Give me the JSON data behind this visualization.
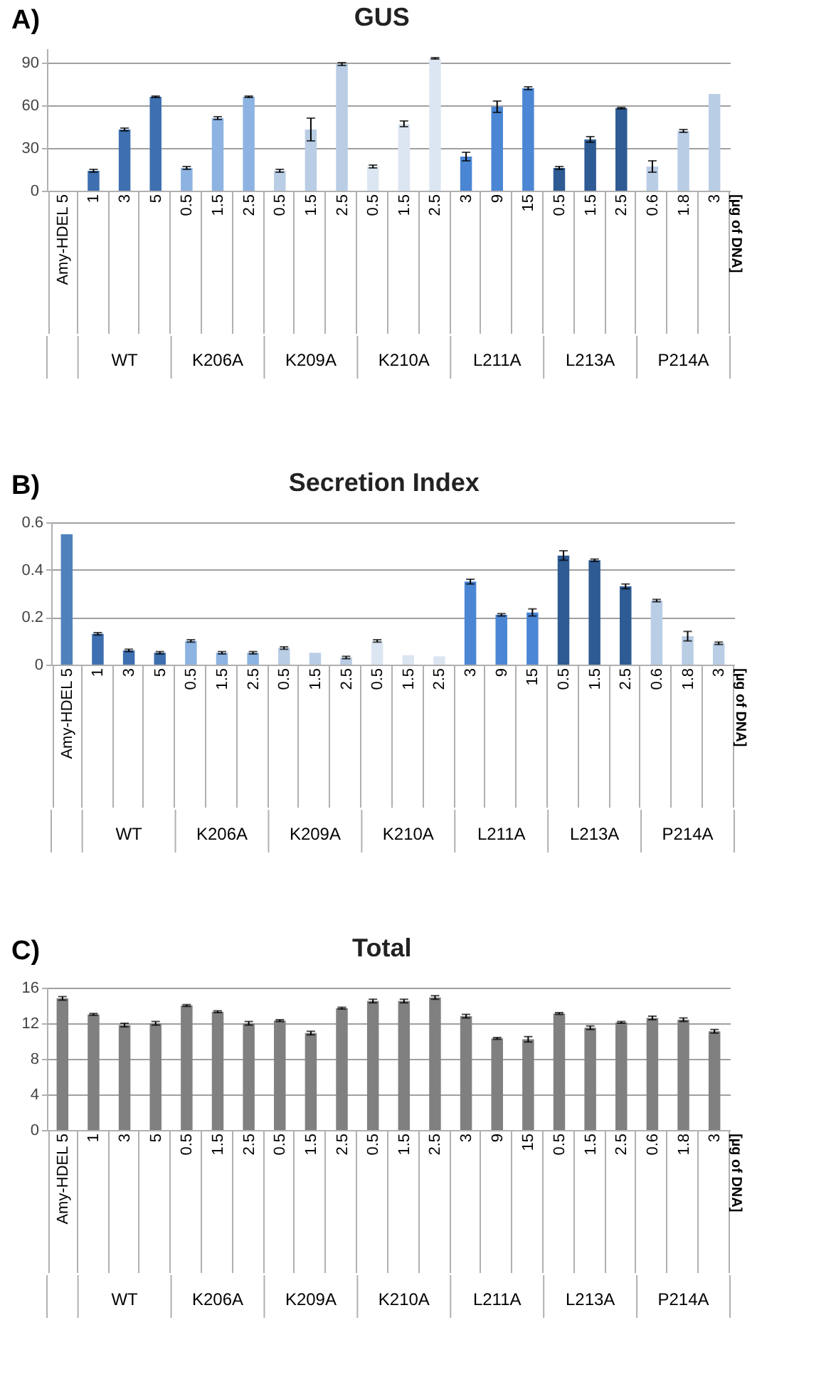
{
  "chart_data": [
    {
      "type": "bar",
      "title": "GUS",
      "annotations": [
        "A)",
        "WT",
        "K206A",
        "K209A",
        "K210A",
        "L211A",
        "L213A",
        "P214A",
        "[µg of DNA]"
      ],
      "categories": [
        "Amy-HDEL 5",
        "1",
        "3",
        "5",
        "0.5",
        "1.5",
        "2.5",
        "0.5",
        "1.5",
        "2.5",
        "0.5",
        "1.5",
        "2.5",
        "3",
        "9",
        "15",
        "0.5",
        "1.5",
        "2.5",
        "0.6",
        "1.8",
        "3"
      ],
      "values": [
        0,
        14,
        43,
        66,
        16,
        51,
        66,
        14,
        43,
        89,
        17,
        47,
        93,
        24,
        59,
        72,
        16,
        36,
        58,
        17,
        42,
        68
      ],
      "errors": [
        null,
        1,
        1,
        0.5,
        1,
        1,
        0.5,
        1,
        8,
        1,
        1,
        2,
        0.5,
        3,
        4,
        1,
        1,
        2,
        0.5,
        4,
        1,
        null
      ],
      "colors": [
        "#4f81bd",
        "#3e6fb0",
        "#3e6fb0",
        "#3e6fb0",
        "#8db3e2",
        "#8db3e2",
        "#8db3e2",
        "#b9cde5",
        "#b9cde5",
        "#b9cde5",
        "#dce6f2",
        "#dce6f2",
        "#dce6f2",
        "#4a86d4",
        "#4a86d4",
        "#4a86d4",
        "#2e5b93",
        "#2e5b93",
        "#2e5b93",
        "#b9cde5",
        "#b9cde5",
        "#b9cde5"
      ],
      "ylim": [
        0,
        100
      ],
      "yticks": [
        0,
        30,
        60,
        90
      ],
      "grid": "y"
    },
    {
      "type": "bar",
      "title": "Secretion Index",
      "annotations": [
        "B)",
        "WT",
        "K206A",
        "K209A",
        "K210A",
        "L211A",
        "L213A",
        "P214A",
        "[µg of DNA]"
      ],
      "categories": [
        "Amy-HDEL 5",
        "1",
        "3",
        "5",
        "0.5",
        "1.5",
        "2.5",
        "0.5",
        "1.5",
        "2.5",
        "0.5",
        "1.5",
        "2.5",
        "3",
        "9",
        "15",
        "0.5",
        "1.5",
        "2.5",
        "0.6",
        "1.8",
        "3"
      ],
      "values": [
        0.55,
        0.13,
        0.06,
        0.05,
        0.1,
        0.05,
        0.05,
        0.07,
        0.05,
        0.03,
        0.1,
        0.04,
        0.035,
        0.35,
        0.21,
        0.22,
        0.46,
        0.44,
        0.33,
        0.27,
        0.12,
        0.09
      ],
      "errors": [
        null,
        0.005,
        0.005,
        0.005,
        0.005,
        0.005,
        0.005,
        0.005,
        null,
        0.005,
        0.005,
        null,
        null,
        0.01,
        0.005,
        0.015,
        0.02,
        0.005,
        0.01,
        0.005,
        0.02,
        0.005
      ],
      "colors": [
        "#4f81bd",
        "#3e6fb0",
        "#3e6fb0",
        "#3e6fb0",
        "#8db3e2",
        "#8db3e2",
        "#8db3e2",
        "#b9cde5",
        "#b9cde5",
        "#b9cde5",
        "#dce6f2",
        "#dce6f2",
        "#dce6f2",
        "#4a86d4",
        "#4a86d4",
        "#4a86d4",
        "#2e5b93",
        "#2e5b93",
        "#2e5b93",
        "#b9cde5",
        "#b9cde5",
        "#b9cde5"
      ],
      "ylim": [
        0,
        0.6
      ],
      "yticks": [
        0,
        0.2,
        0.4,
        0.6
      ],
      "grid": "y"
    },
    {
      "type": "bar",
      "title": "Total",
      "annotations": [
        "C)",
        "WT",
        "K206A",
        "K209A",
        "K210A",
        "L211A",
        "L213A",
        "P214A",
        "[µg of DNA]"
      ],
      "categories": [
        "Amy-HDEL 5",
        "1",
        "3",
        "5",
        "0.5",
        "1.5",
        "2.5",
        "0.5",
        "1.5",
        "2.5",
        "0.5",
        "1.5",
        "2.5",
        "3",
        "9",
        "15",
        "0.5",
        "1.5",
        "2.5",
        "0.6",
        "1.8",
        "3"
      ],
      "values": [
        14.8,
        13,
        11.8,
        12,
        14,
        13.3,
        12,
        12.3,
        10.9,
        13.7,
        14.5,
        14.5,
        14.9,
        12.8,
        10.3,
        10.2,
        13.1,
        11.5,
        12.1,
        12.6,
        12.4,
        11.1
      ],
      "errors": [
        0.2,
        0.1,
        0.2,
        0.2,
        0.1,
        0.1,
        0.2,
        0.1,
        0.2,
        0.1,
        0.2,
        0.2,
        0.2,
        0.2,
        0.1,
        0.3,
        0.1,
        0.2,
        0.1,
        0.2,
        0.2,
        0.2
      ],
      "colors": [
        "#808080",
        "#808080",
        "#808080",
        "#808080",
        "#808080",
        "#808080",
        "#808080",
        "#808080",
        "#808080",
        "#808080",
        "#808080",
        "#808080",
        "#808080",
        "#808080",
        "#808080",
        "#808080",
        "#808080",
        "#808080",
        "#808080",
        "#808080",
        "#808080",
        "#808080"
      ],
      "ylim": [
        0,
        16
      ],
      "yticks": [
        0,
        4,
        8,
        12,
        16
      ],
      "grid": "y"
    }
  ]
}
